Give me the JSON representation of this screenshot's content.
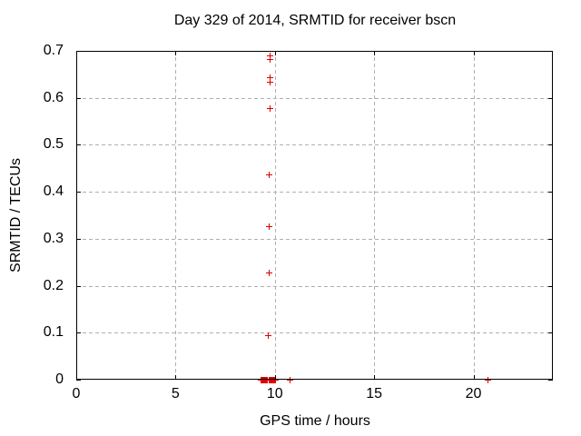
{
  "chart_data": {
    "type": "scatter",
    "title": "Day 329 of 2014, SRMTID for receiver bscn",
    "xlabel": "GPS time / hours",
    "ylabel": "SRMTID / TECUs",
    "xlim": [
      0,
      24
    ],
    "ylim": [
      0,
      0.7
    ],
    "x_ticks": [
      0,
      5,
      10,
      15,
      20
    ],
    "x_tick_labels": [
      "0",
      "5",
      "10",
      "15",
      "20"
    ],
    "y_ticks": [
      0,
      0.1,
      0.2,
      0.3,
      0.4,
      0.5,
      0.6,
      0.7
    ],
    "y_tick_labels": [
      "0",
      "0.1",
      "0.2",
      "0.3",
      "0.4",
      "0.5",
      "0.6",
      "0.7"
    ],
    "grid": true,
    "legend_position": "none",
    "marker_style": "plus",
    "colors": {
      "marker": "#e00000",
      "grid": "#b0b0b0",
      "axis": "#000000",
      "background": "#ffffff",
      "text": "#000000"
    },
    "series": [
      {
        "name": "SRMTID",
        "points": [
          [
            9.74,
            0.69
          ],
          [
            9.74,
            0.681
          ],
          [
            9.74,
            0.643
          ],
          [
            9.74,
            0.634
          ],
          [
            9.74,
            0.577
          ],
          [
            9.7,
            0.436
          ],
          [
            9.73,
            0.325
          ],
          [
            9.73,
            0.227
          ],
          [
            9.69,
            0.093
          ],
          [
            9.31,
            0
          ],
          [
            9.355,
            0
          ],
          [
            9.4,
            0
          ],
          [
            9.445,
            0
          ],
          [
            9.49,
            0
          ],
          [
            9.535,
            0
          ],
          [
            9.58,
            0
          ],
          [
            9.625,
            0
          ],
          [
            9.72,
            0
          ],
          [
            9.765,
            0
          ],
          [
            9.81,
            0
          ],
          [
            9.855,
            0
          ],
          [
            9.9,
            0
          ],
          [
            9.945,
            0
          ],
          [
            9.99,
            0
          ],
          [
            10.035,
            0
          ],
          [
            10.77,
            0
          ],
          [
            20.75,
            0
          ]
        ]
      }
    ]
  }
}
